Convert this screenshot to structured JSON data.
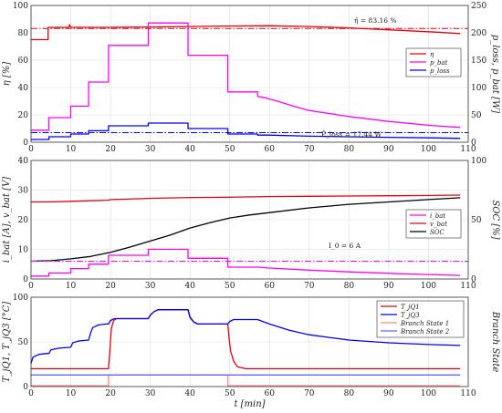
{
  "chart_data": [
    {
      "type": "line",
      "xlim": [
        0,
        110
      ],
      "ylim": [
        0,
        100
      ],
      "ylim_right": [
        0,
        250
      ],
      "x_ticks": [
        "0",
        "10",
        "20",
        "30",
        "40",
        "50",
        "60",
        "70",
        "80",
        "90",
        "100",
        "110"
      ],
      "y_ticks": [
        "0",
        "20",
        "40",
        "60",
        "80",
        "100"
      ],
      "y_ticks_right": [
        "0",
        "50",
        "100",
        "150",
        "200",
        "250"
      ],
      "ylabel": "η [%]",
      "ylabel_right": "p_loss, p_bat [W]",
      "grid": true,
      "legend": [
        "η",
        "p_bat",
        "p_loss"
      ],
      "legend_position": "right-middle",
      "annotations": [
        "η̄ = 83.16 %",
        "P̄_loss = 17.44 W"
      ],
      "series": [
        {
          "name": "η",
          "axis": "left",
          "color": "#e8000b",
          "points": [
            [
              0,
              75
            ],
            [
              4.3,
              75
            ],
            [
              4.3,
              84
            ],
            [
              9.5,
              84
            ],
            [
              9.7,
              86
            ],
            [
              10,
              84
            ],
            [
              20,
              84
            ],
            [
              30,
              84.3
            ],
            [
              40,
              84.6
            ],
            [
              50,
              85
            ],
            [
              60,
              85.2
            ],
            [
              70,
              84.6
            ],
            [
              80,
              83.6
            ],
            [
              90,
              82.2
            ],
            [
              100,
              80.8
            ],
            [
              108,
              79.5
            ]
          ]
        },
        {
          "name": "p_bat",
          "axis": "right",
          "color": "#ff00ff",
          "points": [
            [
              0,
              22
            ],
            [
              4.5,
              22
            ],
            [
              4.5,
              45
            ],
            [
              10,
              45
            ],
            [
              10,
              66
            ],
            [
              14.5,
              66
            ],
            [
              14.5,
              110
            ],
            [
              19.5,
              110
            ],
            [
              19.5,
              177
            ],
            [
              29.5,
              177
            ],
            [
              29.5,
              218
            ],
            [
              39.5,
              218
            ],
            [
              39.5,
              159
            ],
            [
              49.5,
              159
            ],
            [
              49.5,
              92
            ],
            [
              57,
              92
            ],
            [
              57,
              84
            ],
            [
              58.5,
              82
            ],
            [
              62,
              75
            ],
            [
              66,
              66
            ],
            [
              70,
              58
            ],
            [
              80,
              47
            ],
            [
              90,
              38
            ],
            [
              100,
              31
            ],
            [
              108,
              27
            ]
          ]
        },
        {
          "name": "p_loss",
          "axis": "right",
          "color": "#0000ff",
          "points": [
            [
              0,
              5
            ],
            [
              4.5,
              5
            ],
            [
              4.5,
              10
            ],
            [
              10,
              10
            ],
            [
              10,
              15
            ],
            [
              14.5,
              15
            ],
            [
              14.5,
              21
            ],
            [
              19.5,
              21
            ],
            [
              19.5,
              30
            ],
            [
              29.5,
              30
            ],
            [
              29.5,
              35
            ],
            [
              39.5,
              35
            ],
            [
              39.5,
              25
            ],
            [
              49.5,
              25
            ],
            [
              49.5,
              15
            ],
            [
              57,
              15
            ],
            [
              57,
              13
            ],
            [
              60,
              13
            ],
            [
              70,
              11
            ],
            [
              80,
              10
            ],
            [
              90,
              9
            ],
            [
              100,
              8
            ],
            [
              108,
              7
            ]
          ]
        },
        {
          "name": "η mean",
          "axis": "left",
          "color": "#e8000b",
          "dash": "dash-dot",
          "points": [
            [
              0,
              83.16
            ],
            [
              110,
              83.16
            ]
          ]
        },
        {
          "name": "p_loss mean",
          "axis": "right",
          "color": "#0000ff",
          "dash": "dash-dot",
          "points": [
            [
              0,
              17.44
            ],
            [
              110,
              17.44
            ]
          ]
        }
      ]
    },
    {
      "type": "line",
      "xlim": [
        0,
        110
      ],
      "ylim": [
        0,
        40
      ],
      "ylim_right": [
        0,
        100
      ],
      "x_ticks": [
        "0",
        "10",
        "20",
        "30",
        "40",
        "50",
        "60",
        "70",
        "80",
        "90",
        "100",
        "110"
      ],
      "y_ticks": [
        "0",
        "10",
        "20",
        "30",
        "40"
      ],
      "y_ticks_right": [
        "0",
        "50",
        "100"
      ],
      "ylabel": "i_bat [A], v_bat [V]",
      "ylabel_right": "SOC [%]",
      "grid": true,
      "legend": [
        "i_bat",
        "v_bat",
        "SOC"
      ],
      "legend_position": "right-middle",
      "annotations": [
        "I_0 = 6 A"
      ],
      "series": [
        {
          "name": "i_bat",
          "axis": "left",
          "color": "#ff00ff",
          "points": [
            [
              0,
              1
            ],
            [
              4.5,
              1
            ],
            [
              4.5,
              2
            ],
            [
              10,
              2
            ],
            [
              10,
              3.5
            ],
            [
              14.5,
              3.5
            ],
            [
              14.5,
              5
            ],
            [
              19.5,
              5
            ],
            [
              19.5,
              8
            ],
            [
              29.5,
              8
            ],
            [
              29.5,
              10
            ],
            [
              39.5,
              10
            ],
            [
              39.5,
              7
            ],
            [
              49.5,
              7
            ],
            [
              49.5,
              4
            ],
            [
              57,
              4
            ],
            [
              60,
              3.7
            ],
            [
              70,
              3
            ],
            [
              80,
              2.4
            ],
            [
              90,
              1.9
            ],
            [
              100,
              1.5
            ],
            [
              108,
              1.2
            ]
          ]
        },
        {
          "name": "v_bat",
          "axis": "left",
          "color": "#e8000b",
          "points": [
            [
              0,
              26
            ],
            [
              4.5,
              26
            ],
            [
              10,
              26.2
            ],
            [
              14.5,
              26.4
            ],
            [
              19.5,
              26.6
            ],
            [
              20,
              26.8
            ],
            [
              30,
              27.2
            ],
            [
              40,
              27.5
            ],
            [
              50,
              27.6
            ],
            [
              60,
              27.8
            ],
            [
              70,
              27.9
            ],
            [
              80,
              28
            ],
            [
              90,
              28.1
            ],
            [
              100,
              28.2
            ],
            [
              108,
              28.3
            ]
          ]
        },
        {
          "name": "SOC",
          "axis": "right",
          "color": "#000000",
          "points": [
            [
              0,
              15
            ],
            [
              5,
              15.5
            ],
            [
              10,
              17
            ],
            [
              15,
              19
            ],
            [
              20,
              22.5
            ],
            [
              25,
              27
            ],
            [
              30,
              32
            ],
            [
              35,
              37
            ],
            [
              40,
              43
            ],
            [
              45,
              47.5
            ],
            [
              50,
              51.5
            ],
            [
              55,
              54
            ],
            [
              60,
              56
            ],
            [
              70,
              60
            ],
            [
              80,
              63
            ],
            [
              90,
              65
            ],
            [
              100,
              67
            ],
            [
              108,
              68.5
            ]
          ]
        },
        {
          "name": "I_0",
          "axis": "left",
          "color": "#ff00ff",
          "dash": "dash-dot",
          "points": [
            [
              0,
              6
            ],
            [
              110,
              6
            ]
          ]
        }
      ]
    },
    {
      "type": "line",
      "xlim": [
        0,
        110
      ],
      "ylim": [
        0,
        100
      ],
      "x_ticks": [
        "0",
        "10",
        "20",
        "30",
        "40",
        "50",
        "60",
        "70",
        "80",
        "90",
        "100",
        "110"
      ],
      "y_ticks": [
        "0",
        "50",
        "100"
      ],
      "xlabel": "t [min]",
      "ylabel": "T_jQ1, T_jQ3 [°C]",
      "ylabel_right": "Branch State",
      "grid": true,
      "legend": [
        "T_jQ1",
        "T_jQ3",
        "Branch State 1",
        "Branch State 2"
      ],
      "legend_position": "top-right",
      "series": [
        {
          "name": "T_jQ1",
          "color": "#e8000b",
          "points": [
            [
              0,
              20
            ],
            [
              19.5,
              20
            ],
            [
              19.8,
              38
            ],
            [
              20.2,
              65
            ],
            [
              20.8,
              74
            ],
            [
              21.5,
              76
            ],
            [
              29.5,
              76
            ],
            [
              30,
              80
            ],
            [
              31,
              84
            ],
            [
              32,
              86
            ],
            [
              39.5,
              86
            ],
            [
              40,
              78
            ],
            [
              41,
              72
            ],
            [
              42,
              70
            ],
            [
              49.5,
              70
            ],
            [
              49.8,
              55
            ],
            [
              50.2,
              40
            ],
            [
              51,
              28
            ],
            [
              52,
              22
            ],
            [
              54,
              20
            ],
            [
              108,
              20
            ]
          ]
        },
        {
          "name": "T_jQ3",
          "color": "#0000ff",
          "points": [
            [
              0,
              26
            ],
            [
              0.5,
              33
            ],
            [
              2,
              36
            ],
            [
              4,
              37
            ],
            [
              4.5,
              37
            ],
            [
              5,
              41
            ],
            [
              7,
              43
            ],
            [
              10,
              44
            ],
            [
              10.5,
              49
            ],
            [
              12,
              51
            ],
            [
              14.5,
              52
            ],
            [
              15,
              60
            ],
            [
              15.5,
              66
            ],
            [
              17,
              69
            ],
            [
              19,
              70
            ],
            [
              19.5,
              70
            ],
            [
              20,
              74
            ],
            [
              21,
              76
            ],
            [
              29.5,
              76
            ],
            [
              30,
              80
            ],
            [
              31,
              84
            ],
            [
              32,
              86
            ],
            [
              39.5,
              86
            ],
            [
              40,
              77
            ],
            [
              41,
              72
            ],
            [
              42,
              70
            ],
            [
              49.5,
              70
            ],
            [
              50,
              73
            ],
            [
              51,
              75
            ],
            [
              57,
              75
            ],
            [
              60,
              70
            ],
            [
              65,
              63
            ],
            [
              70,
              58
            ],
            [
              75,
              55
            ],
            [
              80,
              52
            ],
            [
              90,
              49
            ],
            [
              100,
              47
            ],
            [
              108,
              46
            ]
          ]
        },
        {
          "name": "Branch State 1",
          "color": "#ff8a80",
          "points": [
            [
              0,
              1
            ],
            [
              19.5,
              1
            ],
            [
              19.5,
              13
            ],
            [
              49.5,
              13
            ],
            [
              49.5,
              1
            ],
            [
              108,
              1
            ]
          ]
        },
        {
          "name": "Branch State 2",
          "color": "#6666ff",
          "points": [
            [
              0,
              13
            ],
            [
              19.5,
              13
            ],
            [
              49.5,
              13
            ],
            [
              108,
              13
            ]
          ]
        }
      ]
    }
  ]
}
